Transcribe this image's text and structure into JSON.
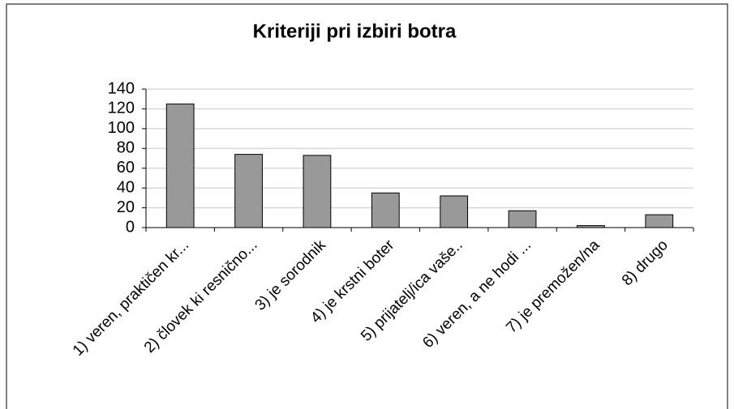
{
  "chart_data": {
    "type": "bar",
    "title": "Kriteriji pri izbiri botra",
    "categories": [
      "1) veren, praktičen kr...",
      "2) človek ki resnično...",
      "3) je sorodnik",
      "4) je krstni boter",
      "5) prijatelj/ica vaše..",
      "6) veren, a ne hodi ...",
      "7) je premožen/na",
      "8) drugo"
    ],
    "values": [
      125,
      74,
      73,
      35,
      32,
      17,
      2,
      13
    ],
    "color": "#999999",
    "ylim": [
      0,
      140
    ],
    "yticks": [
      0,
      20,
      40,
      60,
      80,
      100,
      120,
      140
    ],
    "grid": true
  }
}
